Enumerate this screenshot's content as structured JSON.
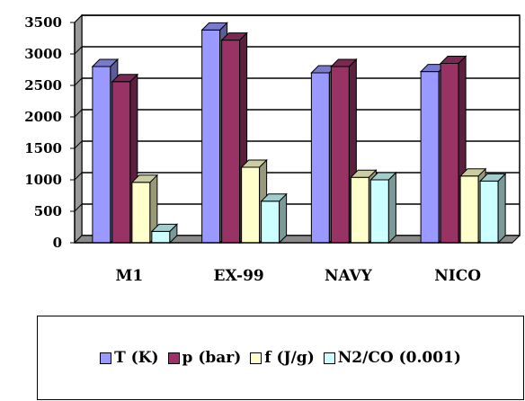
{
  "chart_data": {
    "type": "bar",
    "categories": [
      "M1",
      "EX-99",
      "NAVY",
      "NICO"
    ],
    "series": [
      {
        "name": "T (K)",
        "color": "#9999ff",
        "values": [
          2800,
          3380,
          2700,
          2720
        ]
      },
      {
        "name": "p (bar)",
        "color": "#993366",
        "values": [
          2560,
          3220,
          2800,
          2850
        ]
      },
      {
        "name": "f (J/g)",
        "color": "#ffffcc",
        "values": [
          960,
          1200,
          1040,
          1060
        ]
      },
      {
        "name": "N2/CO (0.001)",
        "color": "#ccffff",
        "values": [
          180,
          660,
          1000,
          980
        ]
      }
    ],
    "ylim": [
      0,
      3500
    ],
    "yticks": [
      "0",
      "500",
      "1000",
      "1500",
      "2000",
      "2500",
      "3000",
      "3500"
    ],
    "grid": true,
    "legend_position": "bottom",
    "style": "3d-clustered"
  }
}
